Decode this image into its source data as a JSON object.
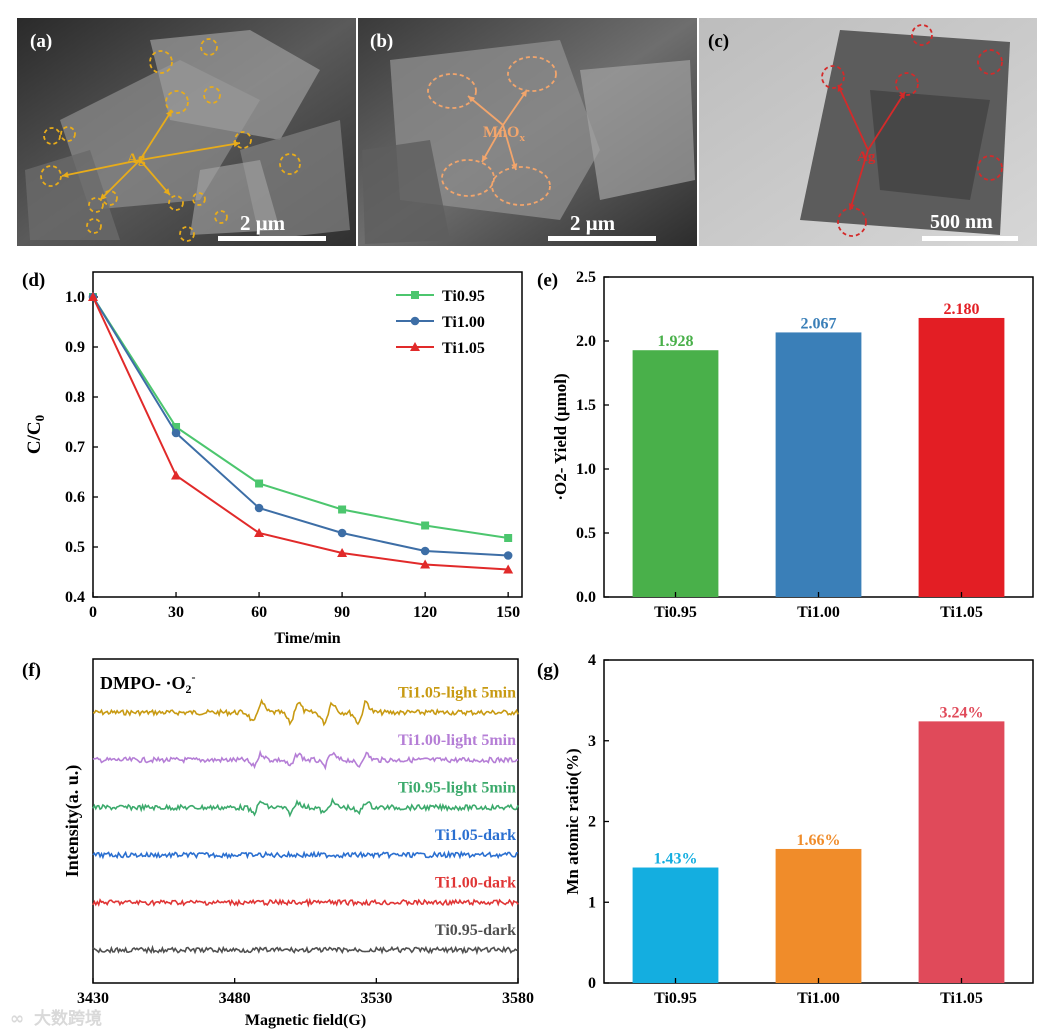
{
  "panel_labels": {
    "a": "(a)",
    "b": "(b)",
    "c": "(c)",
    "d": "(d)",
    "e": "(e)",
    "f": "(f)",
    "g": "(g)"
  },
  "micrographs": {
    "a": {
      "annotation": "Ag",
      "scale_bar": "2 μm",
      "marker_color": "#e8ac1a"
    },
    "b": {
      "annotation": "MnOx",
      "annotation_main": "MnO",
      "annotation_sub": "x",
      "scale_bar": "2 μm",
      "marker_color": "#f2a56c"
    },
    "c": {
      "annotation": "Ag",
      "scale_bar": "500 nm",
      "marker_color": "#d42a2a"
    }
  },
  "watermark": "大数跨境",
  "chart_data": [
    {
      "id": "d",
      "type": "line",
      "title": "",
      "xlabel": "Time/min",
      "ylabel": "C/C0",
      "ylabel_main": "C/C",
      "ylabel_sub": "0",
      "x": [
        0,
        30,
        60,
        90,
        120,
        150
      ],
      "xlim": [
        0,
        155
      ],
      "ylim": [
        0.4,
        1.05
      ],
      "xticks": [
        0,
        30,
        60,
        90,
        120,
        150
      ],
      "yticks": [
        0.4,
        0.5,
        0.6,
        0.7,
        0.8,
        0.9,
        1.0
      ],
      "ytick_labels": [
        "0.4",
        "0.5",
        "0.6",
        "0.7",
        "0.8",
        "0.9",
        "1.0"
      ],
      "legend": "top-right",
      "series": [
        {
          "name": "Ti0.95",
          "color": "#4cc66e",
          "marker": "square",
          "values": [
            1.0,
            0.74,
            0.627,
            0.575,
            0.543,
            0.518
          ]
        },
        {
          "name": "Ti1.00",
          "color": "#3d6ea6",
          "marker": "circle",
          "values": [
            1.0,
            0.728,
            0.578,
            0.528,
            0.492,
            0.483
          ]
        },
        {
          "name": "Ti1.05",
          "color": "#e12a2a",
          "marker": "triangle",
          "values": [
            1.0,
            0.643,
            0.528,
            0.488,
            0.465,
            0.455
          ]
        }
      ]
    },
    {
      "id": "e",
      "type": "bar",
      "title": "",
      "xlabel": "",
      "ylabel": "·O2- Yield (μmol)",
      "categories": [
        "Ti0.95",
        "Ti1.00",
        "Ti1.05"
      ],
      "values": [
        1.928,
        2.067,
        2.18
      ],
      "value_labels": [
        "1.928",
        "2.067",
        "2.180"
      ],
      "colors": [
        "#49b04a",
        "#3a7fb8",
        "#e31e24"
      ],
      "ylim": [
        0,
        2.5
      ],
      "yticks": [
        0,
        0.5,
        1.0,
        1.5,
        2.0,
        2.5
      ],
      "ytick_labels": [
        "0.0",
        "0.5",
        "1.0",
        "1.5",
        "2.0",
        "2.5"
      ]
    },
    {
      "id": "f",
      "type": "line",
      "title": "DMPO- ·O2-",
      "title_main": "DMPO- ·O",
      "title_sub": "2",
      "title_sup": "-",
      "xlabel": "Magnetic field(G)",
      "ylabel": "Intensity(a. u.)",
      "xlim": [
        3430,
        3580
      ],
      "xticks": [
        3430,
        3480,
        3530,
        3580
      ],
      "y_axis_ticks": false,
      "peak_positions": [
        3488,
        3501,
        3513,
        3525
      ],
      "series": [
        {
          "name": "Ti1.05-light 5min",
          "color": "#c89a12",
          "offset": 5,
          "peak_amplitude": 1.0
        },
        {
          "name": "Ti1.00-light 5min",
          "color": "#b57ed6",
          "offset": 4,
          "peak_amplitude": 0.6
        },
        {
          "name": "Ti0.95-light 5min",
          "color": "#3caa6c",
          "offset": 3,
          "peak_amplitude": 0.55
        },
        {
          "name": "Ti1.05-dark",
          "color": "#2a6fd0",
          "offset": 2,
          "peak_amplitude": 0
        },
        {
          "name": "Ti1.00-dark",
          "color": "#e03535",
          "offset": 1,
          "peak_amplitude": 0
        },
        {
          "name": "Ti0.95-dark",
          "color": "#505050",
          "offset": 0,
          "peak_amplitude": 0
        }
      ]
    },
    {
      "id": "g",
      "type": "bar",
      "title": "",
      "xlabel": "",
      "ylabel": "Mn atomic ratio(%)",
      "categories": [
        "Ti0.95",
        "Ti1.00",
        "Ti1.05"
      ],
      "values": [
        1.43,
        1.66,
        3.24
      ],
      "value_labels": [
        "1.43%",
        "1.66%",
        "3.24%"
      ],
      "colors": [
        "#14aee0",
        "#f08c2a",
        "#e04a5a"
      ],
      "ylim": [
        0,
        4
      ],
      "yticks": [
        0,
        1,
        2,
        3,
        4
      ],
      "ytick_labels": [
        "0",
        "1",
        "2",
        "3",
        "4"
      ]
    }
  ]
}
